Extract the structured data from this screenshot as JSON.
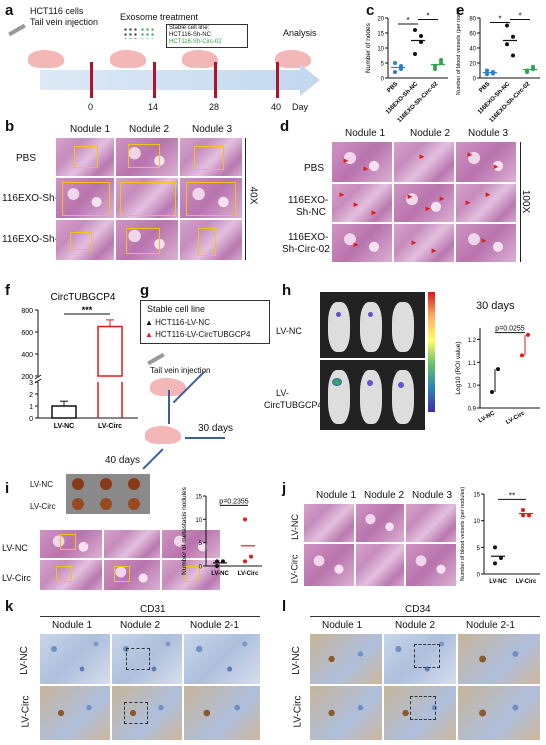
{
  "panels": {
    "a": "a",
    "b": "b",
    "c": "c",
    "d": "d",
    "e": "e",
    "f": "f",
    "g": "g",
    "h": "h",
    "i": "i",
    "j": "j",
    "k": "k",
    "l": "l"
  },
  "a": {
    "cells_line1": "HCT116 cells",
    "cells_line2": "Tail vein injection",
    "exosome": "Exosome treatment",
    "legend_title": "Stable cell line:",
    "legend_nc": "HCT116-Sh-NC",
    "legend_circ": "HCT116-Sh-Circ-02",
    "analysis": "Analysis",
    "days": [
      "0",
      "14",
      "28",
      "40"
    ],
    "day_label": "Day"
  },
  "b": {
    "cols": [
      "Nodule 1",
      "Nodule 2",
      "Nodule 3"
    ],
    "rows": [
      "PBS",
      "116EXO-Sh-NC",
      "116EXO-Sh-Circ-02"
    ],
    "mag": "40X"
  },
  "c": {
    "ylabel": "Number of nodes",
    "yticks": [
      "0",
      "5",
      "10",
      "15",
      "20"
    ],
    "xcats": [
      "PBS",
      "116EXO-Sh-NC",
      "116EXO-Sh-Circ-02"
    ],
    "sig": [
      "*",
      "*"
    ]
  },
  "d": {
    "cols": [
      "Nodule 1",
      "Nodule 2",
      "Nodule 3"
    ],
    "rows": [
      "PBS",
      "116EXO-Sh-NC",
      "116EXO-Sh-Circ-02"
    ],
    "mag": "100X"
  },
  "e": {
    "ylabel": "Number of blood vessels (per nodules)",
    "yticks": [
      "0",
      "20",
      "40",
      "60",
      "80"
    ],
    "xcats": [
      "PBS",
      "116EXO-Sh-NC",
      "116EXO-Sh-Circ-02"
    ],
    "sig": [
      "*",
      "*"
    ]
  },
  "f": {
    "title": "CircTUBGCP4",
    "yticks": [
      "0",
      "1",
      "2",
      "3",
      "200",
      "400",
      "600",
      "800"
    ],
    "sig": "***",
    "xcats": [
      "LV-NC",
      "LV-Circ"
    ]
  },
  "g": {
    "box_title": "Stable cell line",
    "item1": "HCT116-LV-NC",
    "item2": "HCT116-LV-CircTUBGCP4",
    "inject": "Tail vein injection",
    "d30": "30 days",
    "d40": "40 days"
  },
  "h": {
    "rows": [
      "LV-NC",
      "LV-CircTUBGCP4"
    ],
    "title": "30 days",
    "pval": "p=0.0255",
    "ylabel": "Log10 (ROI value)",
    "yticks": [
      "0.9",
      "1.0",
      "1.1",
      "1.2"
    ],
    "xcats": [
      "LV-NC",
      "LV-Circ"
    ]
  },
  "i": {
    "rows_top": [
      "LV-NC",
      "LV-Circ"
    ],
    "rows_bot": [
      "LV-NC",
      "LV-Circ"
    ],
    "pval": "p=0.2355",
    "ylabel": "Number of metastasis nodules",
    "yticks": [
      "0",
      "5",
      "10",
      "15"
    ],
    "xcats": [
      "LV-NC",
      "LV-Circ"
    ]
  },
  "j": {
    "cols": [
      "Nodule 1",
      "Nodule 2",
      "Nodule 3"
    ],
    "rows": [
      "LV-NC",
      "LV-Circ"
    ],
    "sig": "**",
    "ylabel": "Number of blood vessels (per nodules)",
    "yticks": [
      "0",
      "5",
      "10",
      "15"
    ],
    "xcats": [
      "LV-NC",
      "LV-Circ"
    ]
  },
  "k": {
    "title": "CD31",
    "cols": [
      "Nodule 1",
      "Nodule 2",
      "Nodule 2-1"
    ],
    "rows": [
      "LV-NC",
      "LV-Circ"
    ]
  },
  "l": {
    "title": "CD34",
    "cols": [
      "Nodule 1",
      "Nodule 2",
      "Nodule 2-1"
    ],
    "rows": [
      "LV-NC",
      "LV-Circ"
    ]
  },
  "chart_data": [
    {
      "type": "scatter",
      "panel": "c",
      "categories": [
        "PBS",
        "116EXO-Sh-NC",
        "116EXO-Sh-Circ-02"
      ],
      "ylabel": "Number of nodes",
      "ylim": [
        0,
        20
      ],
      "series": [
        {
          "values": [
            [
              2,
              3,
              5,
              4
            ],
            [
              16,
              14,
              8,
              12
            ],
            [
              3,
              6,
              4,
              5
            ]
          ]
        }
      ],
      "colors": [
        "#2a7fd4",
        "#111111",
        "#2aa84a"
      ]
    },
    {
      "type": "scatter",
      "panel": "e",
      "categories": [
        "PBS",
        "116EXO-Sh-NC",
        "116EXO-Sh-Circ-02"
      ],
      "ylabel": "Number of blood vessels (per nodules)",
      "ylim": [
        0,
        80
      ],
      "series": [
        {
          "values": [
            [
              5,
              8,
              10,
              6
            ],
            [
              70,
              55,
              45,
              30
            ],
            [
              10,
              15,
              8,
              12
            ]
          ]
        }
      ],
      "colors": [
        "#2a7fd4",
        "#111111",
        "#2aa84a"
      ]
    },
    {
      "type": "bar",
      "panel": "f",
      "title": "CircTUBGCP4",
      "categories": [
        "LV-NC",
        "LV-Circ"
      ],
      "values": [
        1,
        650
      ],
      "errors": [
        0.4,
        60
      ],
      "colors": [
        "#111111",
        "#e01b1b"
      ]
    },
    {
      "type": "scatter",
      "panel": "h",
      "categories": [
        "LV-NC",
        "LV-Circ"
      ],
      "ylabel": "Log10 (ROI value)",
      "ylim": [
        0.9,
        1.25
      ],
      "series": [
        {
          "values": [
            [
              0.97,
              1.07
            ],
            [
              1.13,
              1.22
            ]
          ]
        }
      ],
      "colors": [
        "#111111",
        "#e01b1b"
      ]
    },
    {
      "type": "scatter",
      "panel": "i",
      "categories": [
        "LV-NC",
        "LV-Circ"
      ],
      "ylabel": "Number of metastasis nodules",
      "ylim": [
        0,
        15
      ],
      "series": [
        {
          "values": [
            [
              0,
              1,
              1
            ],
            [
              1,
              2,
              10
            ]
          ]
        }
      ],
      "colors": [
        "#111111",
        "#e01b1b"
      ]
    },
    {
      "type": "scatter",
      "panel": "j",
      "categories": [
        "LV-NC",
        "LV-Circ"
      ],
      "ylabel": "Number of blood vessels (per nodules)",
      "ylim": [
        0,
        15
      ],
      "series": [
        {
          "values": [
            [
              2,
              3,
              5
            ],
            [
              11,
              11,
              12
            ]
          ]
        }
      ],
      "colors": [
        "#111111",
        "#e01b1b"
      ]
    }
  ]
}
